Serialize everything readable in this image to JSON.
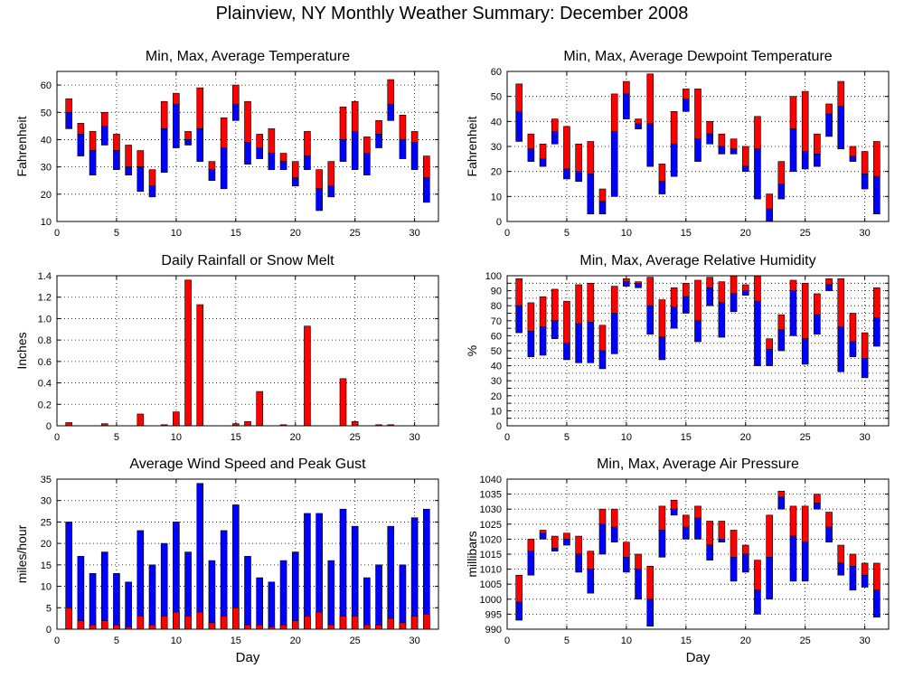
{
  "page": {
    "title": "Plainview, NY Monthly Weather Summary: December 2008"
  },
  "colors": {
    "max_segment": "#ff0000",
    "min_segment": "#0000ff",
    "grid": "#000000"
  },
  "chart_data": [
    {
      "id": "temp",
      "type": "bar",
      "style": "floating-min-avg-max",
      "title": "Min, Max, Average Temperature",
      "xlabel": "",
      "ylabel": "Fahrenheit",
      "xlim": [
        0,
        32
      ],
      "ylim": [
        10,
        65
      ],
      "xticks": [
        0,
        5,
        10,
        15,
        20,
        25,
        30
      ],
      "yticks": [
        10,
        20,
        30,
        40,
        50,
        60
      ],
      "x": [
        1,
        2,
        3,
        4,
        5,
        6,
        7,
        8,
        9,
        10,
        11,
        12,
        13,
        14,
        15,
        16,
        17,
        18,
        19,
        20,
        21,
        22,
        23,
        24,
        25,
        26,
        27,
        28,
        29,
        30,
        31
      ],
      "min": [
        44,
        34,
        27,
        38,
        29,
        27,
        21,
        19,
        28,
        37,
        38,
        32,
        25,
        22,
        47,
        31,
        33,
        29,
        29,
        23,
        29,
        14,
        19,
        32,
        29,
        27,
        37,
        47,
        33,
        29,
        17
      ],
      "avg": [
        50,
        42,
        36,
        45,
        36,
        30,
        30,
        23,
        44,
        53,
        40,
        44,
        29,
        37,
        53,
        39,
        37,
        35,
        32,
        26,
        34,
        22,
        23,
        40,
        43,
        35,
        42,
        53,
        40,
        39,
        26
      ],
      "max": [
        55,
        46,
        43,
        50,
        42,
        38,
        36,
        29,
        54,
        57,
        43,
        59,
        32,
        48,
        60,
        54,
        42,
        44,
        35,
        32,
        43,
        29,
        32,
        52,
        54,
        41,
        47,
        62,
        49,
        43,
        34
      ]
    },
    {
      "id": "dew",
      "type": "bar",
      "style": "floating-min-avg-max",
      "title": "Min, Max, Average Dewpoint Temperature",
      "xlabel": "",
      "ylabel": "Fahrenheit",
      "xlim": [
        0,
        32
      ],
      "ylim": [
        0,
        60
      ],
      "xticks": [
        0,
        5,
        10,
        15,
        20,
        25,
        30
      ],
      "yticks": [
        0,
        10,
        20,
        30,
        40,
        50,
        60
      ],
      "x": [
        1,
        2,
        3,
        4,
        5,
        6,
        7,
        8,
        9,
        10,
        11,
        12,
        13,
        14,
        15,
        16,
        17,
        18,
        19,
        20,
        21,
        22,
        23,
        24,
        25,
        26,
        27,
        28,
        29,
        30,
        31
      ],
      "min": [
        32,
        24,
        22,
        31,
        17,
        16,
        3,
        3,
        10,
        41,
        37,
        22,
        11,
        18,
        44,
        24,
        31,
        27,
        27,
        20,
        9,
        0,
        9,
        20,
        21,
        22,
        34,
        29,
        24,
        13,
        3
      ],
      "avg": [
        44,
        29,
        25,
        36,
        21,
        20,
        19,
        8,
        36,
        51,
        39,
        39,
        16,
        31,
        49,
        33,
        35,
        30,
        29,
        22,
        29,
        5,
        15,
        37,
        28,
        27,
        43,
        46,
        26,
        19,
        18
      ],
      "max": [
        55,
        35,
        31,
        41,
        38,
        31,
        32,
        13,
        51,
        56,
        41,
        59,
        23,
        44,
        53,
        53,
        40,
        35,
        33,
        30,
        42,
        11,
        24,
        50,
        52,
        35,
        47,
        56,
        30,
        28,
        32
      ]
    },
    {
      "id": "rain",
      "type": "bar",
      "title": "Daily Rainfall or Snow Melt",
      "xlabel": "",
      "ylabel": "Inches",
      "xlim": [
        0,
        32
      ],
      "ylim": [
        0,
        1.4
      ],
      "xticks": [
        0,
        5,
        10,
        15,
        20,
        25,
        30
      ],
      "yticks": [
        0,
        0.2,
        0.4,
        0.6,
        0.8,
        1.0,
        1.2,
        1.4
      ],
      "ytick_labels": [
        "0",
        "0.2",
        "0.4",
        "0.6",
        "0.8",
        "1.0",
        "1.2",
        "1.4"
      ],
      "x": [
        1,
        2,
        3,
        4,
        5,
        6,
        7,
        8,
        9,
        10,
        11,
        12,
        13,
        14,
        15,
        16,
        17,
        18,
        19,
        20,
        21,
        22,
        23,
        24,
        25,
        26,
        27,
        28,
        29,
        30,
        31
      ],
      "values": [
        0.03,
        0,
        0,
        0.02,
        0,
        0,
        0.11,
        0,
        0.01,
        0.13,
        1.36,
        1.13,
        0,
        0,
        0.02,
        0.04,
        0.32,
        0,
        0.01,
        0,
        0.93,
        0,
        0,
        0.44,
        0.04,
        0,
        0.01,
        0.01,
        0,
        0,
        0
      ]
    },
    {
      "id": "rh",
      "type": "bar",
      "style": "floating-min-avg-max",
      "title": "Min, Max, Average Relative Humidity",
      "xlabel": "",
      "ylabel": "%",
      "xlim": [
        0,
        32
      ],
      "ylim": [
        0,
        100
      ],
      "xticks": [
        0,
        5,
        10,
        15,
        20,
        25,
        30
      ],
      "yticks": [
        0,
        5,
        10,
        15,
        20,
        25,
        30,
        35,
        40,
        45,
        50,
        55,
        60,
        65,
        70,
        75,
        80,
        85,
        90,
        95,
        100
      ],
      "ytick_labels": [
        "0",
        "10",
        "20",
        "30",
        "40",
        "50",
        "60",
        "70",
        "80",
        "90",
        "100"
      ],
      "x": [
        1,
        2,
        3,
        4,
        5,
        6,
        7,
        8,
        9,
        10,
        11,
        12,
        13,
        14,
        15,
        16,
        17,
        18,
        19,
        20,
        21,
        22,
        23,
        24,
        25,
        26,
        27,
        28,
        29,
        30,
        31
      ],
      "min": [
        62,
        46,
        47,
        58,
        44,
        42,
        42,
        38,
        48,
        93,
        92,
        61,
        44,
        65,
        75,
        56,
        80,
        59,
        76,
        87,
        40,
        40,
        50,
        60,
        41,
        61,
        90,
        36,
        46,
        32,
        53
      ],
      "avg": [
        80,
        63,
        66,
        70,
        55,
        68,
        69,
        50,
        75,
        96,
        95,
        80,
        59,
        79,
        86,
        70,
        92,
        82,
        88,
        90,
        83,
        51,
        64,
        90,
        58,
        74,
        94,
        66,
        56,
        45,
        72
      ],
      "max": [
        98,
        82,
        86,
        91,
        83,
        94,
        95,
        67,
        93,
        98,
        96,
        99,
        84,
        92,
        95,
        97,
        99,
        96,
        100,
        94,
        100,
        58,
        74,
        97,
        95,
        88,
        98,
        98,
        75,
        62,
        92
      ]
    },
    {
      "id": "wind",
      "type": "bar",
      "style": "overlaid-average-and-gust",
      "title": "Average Wind Speed and Peak Gust",
      "xlabel": "Day",
      "ylabel": "miles/hour",
      "xlim": [
        0,
        32
      ],
      "ylim": [
        0,
        35
      ],
      "xticks": [
        0,
        5,
        10,
        15,
        20,
        25,
        30
      ],
      "yticks": [
        0,
        5,
        10,
        15,
        20,
        25,
        30,
        35
      ],
      "x": [
        1,
        2,
        3,
        4,
        5,
        6,
        7,
        8,
        9,
        10,
        11,
        12,
        13,
        14,
        15,
        16,
        17,
        18,
        19,
        20,
        21,
        22,
        23,
        24,
        25,
        26,
        27,
        28,
        29,
        30,
        31
      ],
      "average": [
        5,
        2,
        1,
        2,
        1,
        0.5,
        3,
        1,
        3,
        4,
        3,
        4,
        1.5,
        3,
        5,
        1,
        1,
        0.5,
        1,
        2,
        3,
        4,
        1,
        3,
        3,
        1,
        1,
        2.5,
        1.5,
        3,
        3.5
      ],
      "gust": [
        25,
        17,
        13,
        18,
        13,
        11,
        23,
        15,
        20,
        25,
        18,
        34,
        16,
        23,
        29,
        17,
        12,
        11,
        16,
        18,
        27,
        27,
        16,
        28,
        24,
        12,
        15,
        24,
        15,
        26,
        28
      ]
    },
    {
      "id": "pressure",
      "type": "bar",
      "style": "floating-min-avg-max",
      "title": "Min, Max, Average Air Pressure",
      "xlabel": "Day",
      "ylabel": "millibars",
      "xlim": [
        0,
        32
      ],
      "ylim": [
        990,
        1040
      ],
      "xticks": [
        0,
        5,
        10,
        15,
        20,
        25,
        30
      ],
      "yticks": [
        990,
        995,
        1000,
        1005,
        1010,
        1015,
        1020,
        1025,
        1030,
        1035,
        1040
      ],
      "x": [
        1,
        2,
        3,
        4,
        5,
        6,
        7,
        8,
        9,
        10,
        11,
        12,
        13,
        14,
        15,
        16,
        17,
        18,
        19,
        20,
        21,
        22,
        23,
        24,
        25,
        26,
        27,
        28,
        29,
        30,
        31
      ],
      "min": [
        993,
        1008,
        1020,
        1016,
        1018,
        1009,
        1002,
        1015,
        1019,
        1009,
        1000,
        991,
        1014,
        1028,
        1020,
        1020,
        1013,
        1019,
        1006,
        1009,
        995,
        1000,
        1030,
        1006,
        1006,
        1030,
        1019,
        1008,
        1003,
        1004,
        994
      ],
      "avg": [
        999,
        1016,
        1022,
        1017,
        1020,
        1015,
        1010,
        1025,
        1024,
        1014,
        1010,
        1000,
        1023,
        1030,
        1024,
        1027,
        1018,
        1020,
        1014,
        1015,
        1003,
        1014,
        1034,
        1021,
        1019,
        1032,
        1024,
        1012,
        1011,
        1008,
        1003
      ],
      "max": [
        1008,
        1020,
        1023,
        1021,
        1022,
        1021,
        1016,
        1030,
        1030,
        1019,
        1015,
        1011,
        1031,
        1033,
        1028,
        1031,
        1026,
        1026,
        1023,
        1018,
        1013,
        1028,
        1036,
        1031,
        1031,
        1035,
        1029,
        1018,
        1015,
        1012,
        1012
      ]
    }
  ]
}
